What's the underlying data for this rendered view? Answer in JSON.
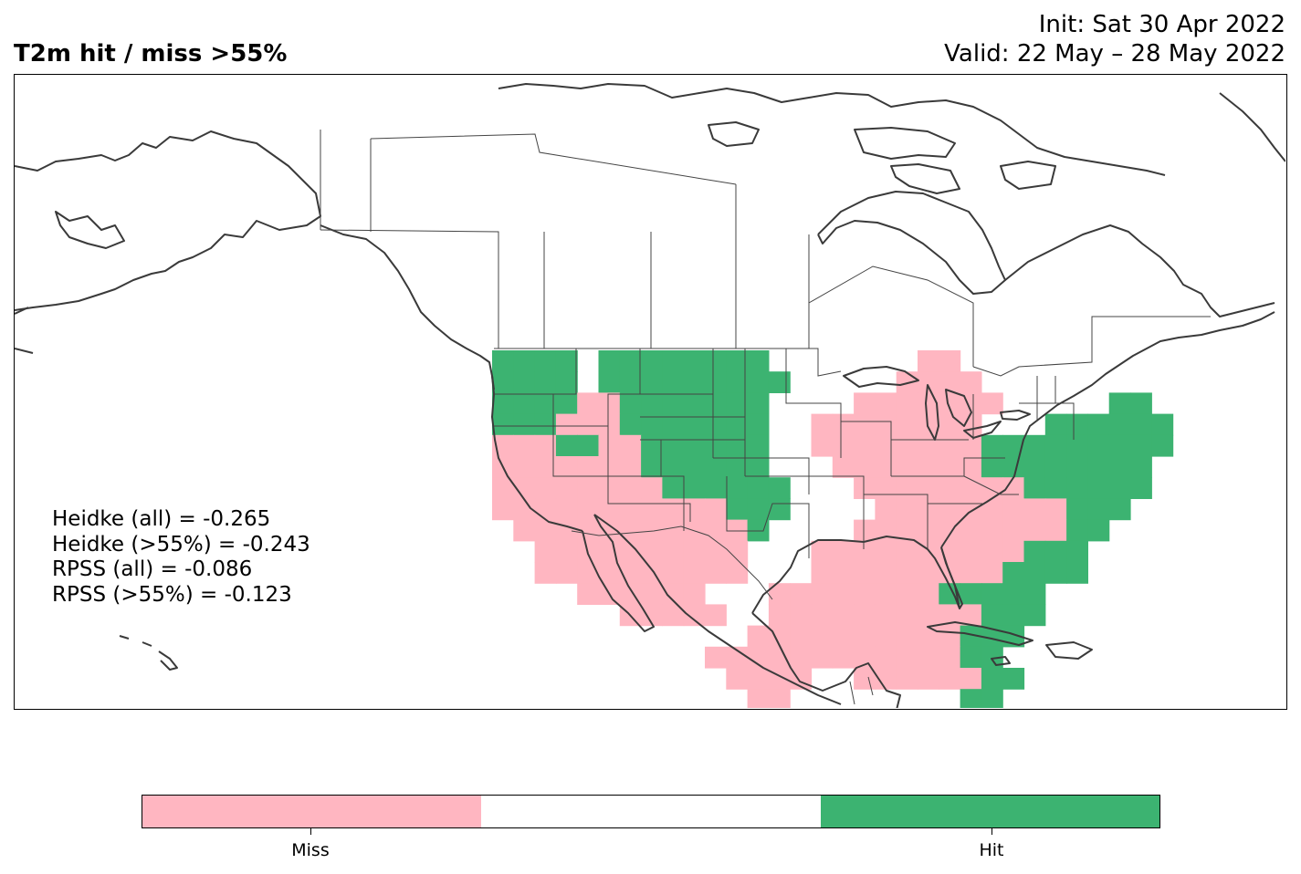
{
  "header": {
    "title": "T2m hit / miss  >55%",
    "init": "Init: Sat 30 Apr 2022",
    "valid": "Valid: 22 May – 28 May 2022"
  },
  "stats": [
    "Heidke (all) = -0.265",
    "Heidke (>55%) = -0.243",
    "RPSS (all) = -0.086",
    "RPSS (>55%) = -0.123"
  ],
  "colors": {
    "miss": "#FFB6C1",
    "neutral": "#FFFFFF",
    "hit": "#3CB371",
    "coastline": "#3a3a3a",
    "border": "#444444"
  },
  "legend": {
    "labels": [
      "Miss",
      "Hit"
    ]
  },
  "map_grid": {
    "rows": [
      "..........................................HHHH.HHHHHHHH.......PP..........",
      "..........................................HHHH.HHHHHHHHH.....PPPP.........",
      "..........................................HHHHPPHHHHHHH....PPPPPPP.....HH.",
      "..........................................HHHPPPHHHHHHH..PPPPPPPP...HHHHHH",
      "..........................................PPPHHPPHHHHHH..PPPPPPPPHHHHHHHHH",
      "..........................................PPPPPPPHHHHHH...PPPPPPPHHHHHHHH.",
      "..........................................PPPPPPPPHHHHHH...PPPPPPPPHHHHHH.",
      "..........................................PPPPPPPPPPPHHH....PPPPPPPPPHHH..",
      "...........................................PPPPPPPPPPPH....PPPPPPPPPPHH...",
      "............................................PPPPPPPPPP...PPPPPPPPPPHHH...",
      "............................................PPPPPPPPPP...PPPPPPPPPHHHH...",
      "..............................................PPPPPP...PPPPPPPPHHHHH.....",
      "................................................PPPPP..PPPPPPPPPPHHH......",
      "......................................................PPPPPPPPPPHHH.......",
      "....................................................PPPPPPPPPPPPHH........",
      ".....................................................PPPP..PPPPPPHH.......",
      "......................................................PP........HH........"
    ]
  }
}
